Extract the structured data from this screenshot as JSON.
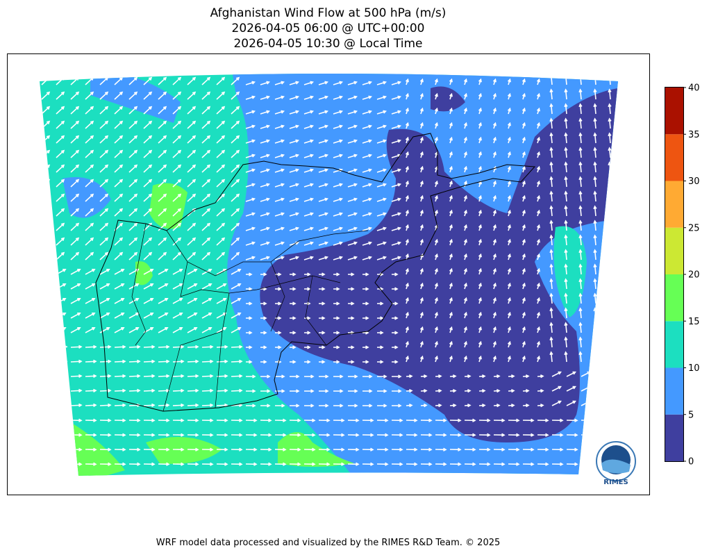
{
  "title": {
    "line1": "Afghanistan Wind Flow at 500 hPa (m/s)",
    "line2": "2026-04-05 06:00 @ UTC+00:00",
    "line3": "2026-04-05 10:30 @ Local Time"
  },
  "chart_data": {
    "type": "heatmap",
    "variable": "Wind speed at 500 hPa with wind vectors",
    "colorbar": {
      "levels": [
        0,
        5,
        10,
        15,
        20,
        25,
        30,
        35,
        40
      ],
      "tick_labels": [
        "0",
        "5",
        "10",
        "15",
        "20",
        "25",
        "30",
        "35",
        "40"
      ],
      "colors": [
        "#3f3f9f",
        "#4499ff",
        "#1cdfc0",
        "#66ff55",
        "#cce833",
        "#ffaa33",
        "#ee5511",
        "#aa1100"
      ]
    }
  },
  "logo": {
    "text": "RIMES"
  },
  "footer": {
    "text": "WRF model data processed and visualized by the RIMES R&D Team. © 2025"
  }
}
